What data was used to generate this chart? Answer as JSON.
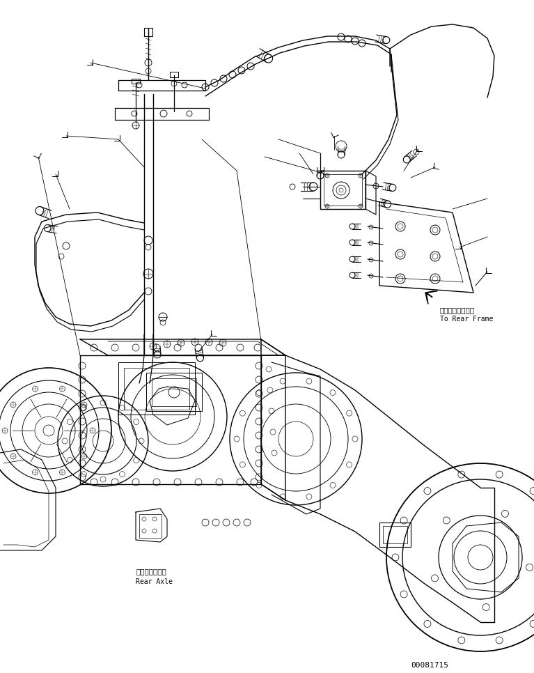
{
  "background_color": "#ffffff",
  "line_color": "#000000",
  "fig_width": 7.67,
  "fig_height": 9.66,
  "dpi": 100,
  "label_rear_frame_jp": "リヤーフレームヘ",
  "label_rear_frame_en": "To Rear Frame",
  "label_rear_axle_jp": "リヤーアクスル",
  "label_rear_axle_en": "Rear Axle",
  "part_number": "00081715",
  "font_size_label": 8,
  "font_size_part": 7.5
}
